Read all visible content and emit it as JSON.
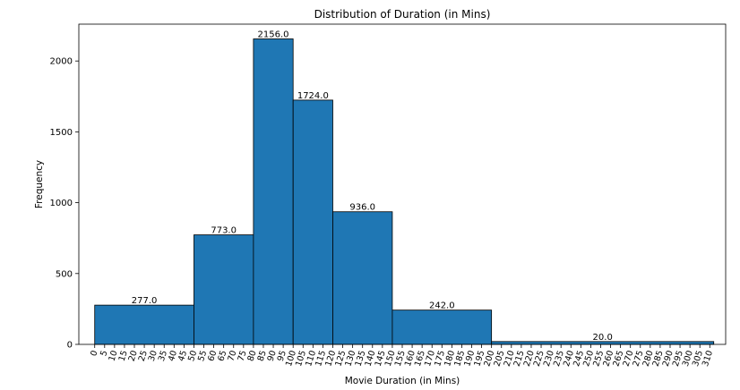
{
  "chart_data": {
    "type": "bar",
    "subtype": "histogram",
    "title": "Distribution of Duration (in Mins)",
    "xlabel": "Movie Duration (in Mins)",
    "ylabel": "Frequency",
    "xlim": [
      -8,
      318
    ],
    "ylim": [
      0,
      2260
    ],
    "grid": false,
    "bar_color": "#1f77b4",
    "edge_color": "#000000",
    "bins": [
      {
        "start": 0,
        "end": 50,
        "value": 277,
        "label": "277.0"
      },
      {
        "start": 50,
        "end": 80,
        "value": 773,
        "label": "773.0"
      },
      {
        "start": 80,
        "end": 100,
        "value": 2156,
        "label": "2156.0"
      },
      {
        "start": 100,
        "end": 120,
        "value": 1724,
        "label": "1724.0"
      },
      {
        "start": 120,
        "end": 150,
        "value": 936,
        "label": "936.0"
      },
      {
        "start": 150,
        "end": 200,
        "value": 242,
        "label": "242.0"
      },
      {
        "start": 200,
        "end": 312,
        "value": 20,
        "label": "20.0"
      }
    ],
    "yticks": [
      0,
      500,
      1000,
      1500,
      2000
    ],
    "xticks": [
      0,
      5,
      10,
      15,
      20,
      25,
      30,
      35,
      40,
      45,
      50,
      55,
      60,
      65,
      70,
      75,
      80,
      85,
      90,
      95,
      100,
      105,
      110,
      115,
      120,
      125,
      130,
      135,
      140,
      145,
      150,
      155,
      160,
      165,
      170,
      175,
      180,
      185,
      190,
      195,
      200,
      205,
      210,
      215,
      220,
      225,
      230,
      235,
      240,
      245,
      250,
      255,
      260,
      265,
      270,
      275,
      280,
      285,
      290,
      295,
      300,
      305,
      310
    ]
  }
}
